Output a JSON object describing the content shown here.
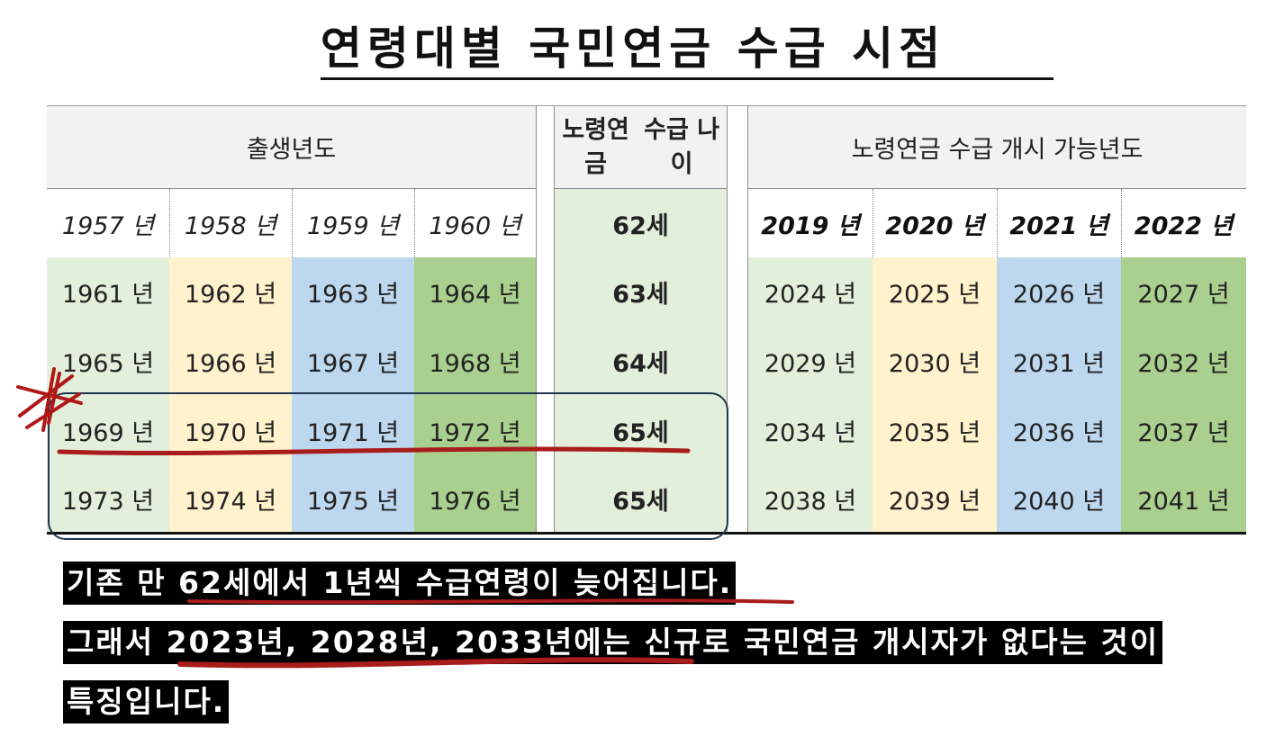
{
  "title": "연령대별 국민연금 수급 시점",
  "table": {
    "header_birth": "출생년도",
    "header_age_line1": "노령연금",
    "header_age_line2": "수급 나이",
    "header_year": "노령연금 수급 개시 가능년도",
    "rows": [
      {
        "births": [
          "1957 년",
          "1958 년",
          "1959 년",
          "1960 년"
        ],
        "age": "62세",
        "years": [
          "2019 년",
          "2020 년",
          "2021 년",
          "2022 년"
        ]
      },
      {
        "births": [
          "1961 년",
          "1962 년",
          "1963 년",
          "1964 년"
        ],
        "age": "63세",
        "years": [
          "2024 년",
          "2025 년",
          "2026 년",
          "2027 년"
        ]
      },
      {
        "births": [
          "1965 년",
          "1966 년",
          "1967 년",
          "1968 년"
        ],
        "age": "64세",
        "years": [
          "2029 년",
          "2030 년",
          "2031 년",
          "2032 년"
        ]
      },
      {
        "births": [
          "1969 년",
          "1970 년",
          "1971 년",
          "1972 년"
        ],
        "age": "65세",
        "years": [
          "2034 년",
          "2035 년",
          "2036 년",
          "2037 년"
        ]
      },
      {
        "births": [
          "1973 년",
          "1974 년",
          "1975 년",
          "1976 년"
        ],
        "age": "65세",
        "years": [
          "2038 년",
          "2039 년",
          "2040 년",
          "2041 년"
        ]
      }
    ]
  },
  "notes": {
    "line1": "기존 만 62세에서 1년씩 수급연령이 늦어집니다.",
    "line2": "그래서 2023년, 2028년, 2033년에는 신규로 국민연금 개시자가  없다는 것이",
    "line3": "특징입니다."
  },
  "colors": {
    "col1": "#e2efda",
    "col2": "#fff2cc",
    "col3": "#bdd7ee",
    "col4": "#a9d08e",
    "header_bg": "#f2f2f2",
    "annotation_red": "#b01818",
    "highlight_box": "#1f3550"
  }
}
